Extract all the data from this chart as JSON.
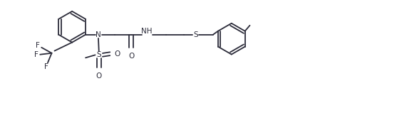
{
  "bg_color": "#ffffff",
  "line_color": "#2c2c3a",
  "line_width": 1.3,
  "font_size": 7.5,
  "figsize": [
    5.64,
    1.59
  ],
  "dpi": 100,
  "xlim": [
    -0.3,
    10.5
  ],
  "ylim": [
    -1.8,
    2.2
  ]
}
